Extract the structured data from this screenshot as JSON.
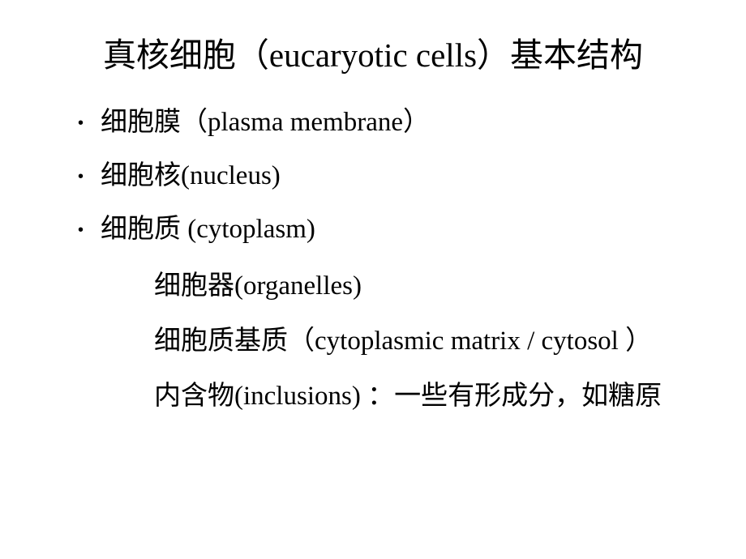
{
  "slide": {
    "title": "真核细胞（eucaryotic cells）基本结构",
    "bullets": [
      "细胞膜（plasma membrane）",
      "细胞核(nucleus)",
      "细胞质 (cytoplasm)"
    ],
    "subitems": [
      "细胞器(organelles)",
      "细胞质基质（cytoplasmic matrix / cytosol ）",
      "内含物(inclusions) ：一些有形成分，如糖原"
    ],
    "bullet_glyph": "•",
    "colors": {
      "background": "#ffffff",
      "text": "#000000",
      "watermark": "#b8b8b8"
    },
    "typography": {
      "title_fontsize": 41,
      "body_fontsize": 33,
      "line_height_body": 54,
      "line_height_sub": 62,
      "font_family": "SimSun / Times New Roman serif"
    }
  }
}
